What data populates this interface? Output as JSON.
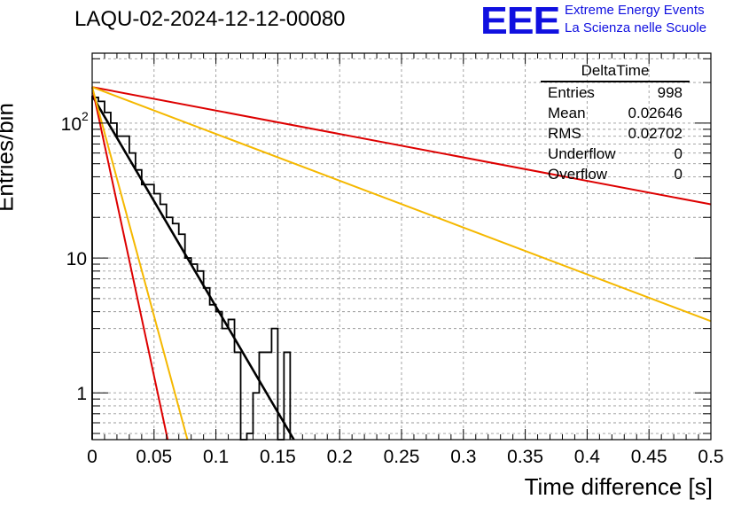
{
  "chart_data": {
    "type": "histogram",
    "title": "LAQU-02-2024-12-12-00080",
    "xlabel": "Time difference [s]",
    "ylabel": "Entries/bin",
    "xlim": [
      0,
      0.5
    ],
    "ylim": [
      0.45,
      330
    ],
    "yscale": "log",
    "grid": true,
    "legend_position": "top-right",
    "x_ticks": [
      "0",
      "0.05",
      "0.1",
      "0.15",
      "0.2",
      "0.25",
      "0.3",
      "0.35",
      "0.4",
      "0.45",
      "0.5"
    ],
    "x_tick_values": [
      0,
      0.05,
      0.1,
      0.15,
      0.2,
      0.25,
      0.3,
      0.35,
      0.4,
      0.45,
      0.5
    ],
    "y_ticks": [
      {
        "label": "1",
        "value": 1,
        "sup": ""
      },
      {
        "label": "10",
        "value": 10,
        "sup": ""
      },
      {
        "label": "10",
        "value": 100,
        "sup": "2"
      }
    ],
    "histogram": {
      "bin_edges": [
        0,
        0.005,
        0.01,
        0.015,
        0.02,
        0.025,
        0.03,
        0.035,
        0.04,
        0.045,
        0.05,
        0.055,
        0.06,
        0.065,
        0.07,
        0.075,
        0.08,
        0.085,
        0.09,
        0.095,
        0.1,
        0.105,
        0.11,
        0.115,
        0.12,
        0.125,
        0.13,
        0.135,
        0.14,
        0.145,
        0.15,
        0.155,
        0.16
      ],
      "counts": [
        155,
        145,
        120,
        100,
        80,
        80,
        60,
        45,
        35,
        35,
        30,
        25,
        20,
        18,
        15,
        10,
        9,
        8,
        6,
        4.5,
        4,
        3,
        3.5,
        2,
        0,
        0.5,
        1,
        2,
        2,
        3,
        0,
        2
      ]
    },
    "fit_lines": [
      {
        "color": "#000000",
        "x": [
          0,
          0.163
        ],
        "y": [
          160,
          0.45
        ]
      },
      {
        "color": "#dd0000",
        "x": [
          0,
          0.5
        ],
        "y": [
          185,
          25
        ]
      },
      {
        "color": "#f5b800",
        "x": [
          0,
          0.5
        ],
        "y": [
          185,
          3.4
        ]
      },
      {
        "color": "#dd0000",
        "x": [
          0,
          0.061
        ],
        "y": [
          185,
          0.45
        ]
      },
      {
        "color": "#f5b800",
        "x": [
          0,
          0.077
        ],
        "y": [
          185,
          0.45
        ]
      }
    ],
    "stats": {
      "name": "DeltaTime",
      "rows": [
        {
          "label": "Entries",
          "value": "998"
        },
        {
          "label": "Mean",
          "value": "0.02646"
        },
        {
          "label": "RMS",
          "value": "0.02702"
        },
        {
          "label": "Underflow",
          "value": "0"
        },
        {
          "label": "Overflow",
          "value": "0"
        }
      ]
    }
  },
  "logo": {
    "text": "EEE",
    "line1": "Extreme Energy Events",
    "line2": "La Scienza nelle Scuole"
  }
}
